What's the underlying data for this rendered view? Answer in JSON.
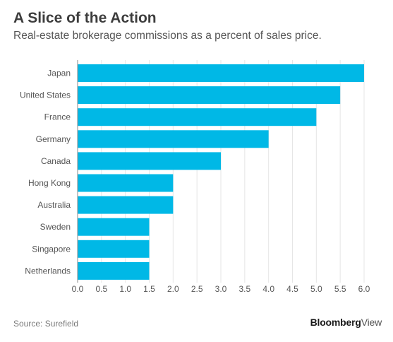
{
  "header": {
    "title": "A Slice of the Action",
    "subtitle": "Real-estate brokerage commissions as a percent of sales price."
  },
  "footer": {
    "source": "Source: Surefield",
    "brand_bold": "Bloomberg",
    "brand_light": "View"
  },
  "colors": {
    "bar": "#00b8e6",
    "grid": "#e6e6e6",
    "axis": "#888888",
    "label": "#555555"
  },
  "chart_data": {
    "type": "bar",
    "orientation": "horizontal",
    "title": "A Slice of the Action",
    "subtitle": "Real-estate brokerage commissions as a percent of sales price.",
    "categories": [
      "Japan",
      "United States",
      "France",
      "Germany",
      "Canada",
      "Hong Kong",
      "Australia",
      "Sweden",
      "Singapore",
      "Netherlands"
    ],
    "values": [
      6.0,
      5.5,
      5.0,
      4.0,
      3.0,
      2.0,
      2.0,
      1.5,
      1.5,
      1.5
    ],
    "xlim": [
      0,
      6.0
    ],
    "xticks": [
      "0.0",
      "0.5",
      "1.0",
      "1.5",
      "2.0",
      "2.5",
      "3.0",
      "3.5",
      "4.0",
      "4.5",
      "5.0",
      "5.5",
      "6.0"
    ],
    "xlabel": "",
    "ylabel": "",
    "grid": true,
    "legend": "none"
  }
}
